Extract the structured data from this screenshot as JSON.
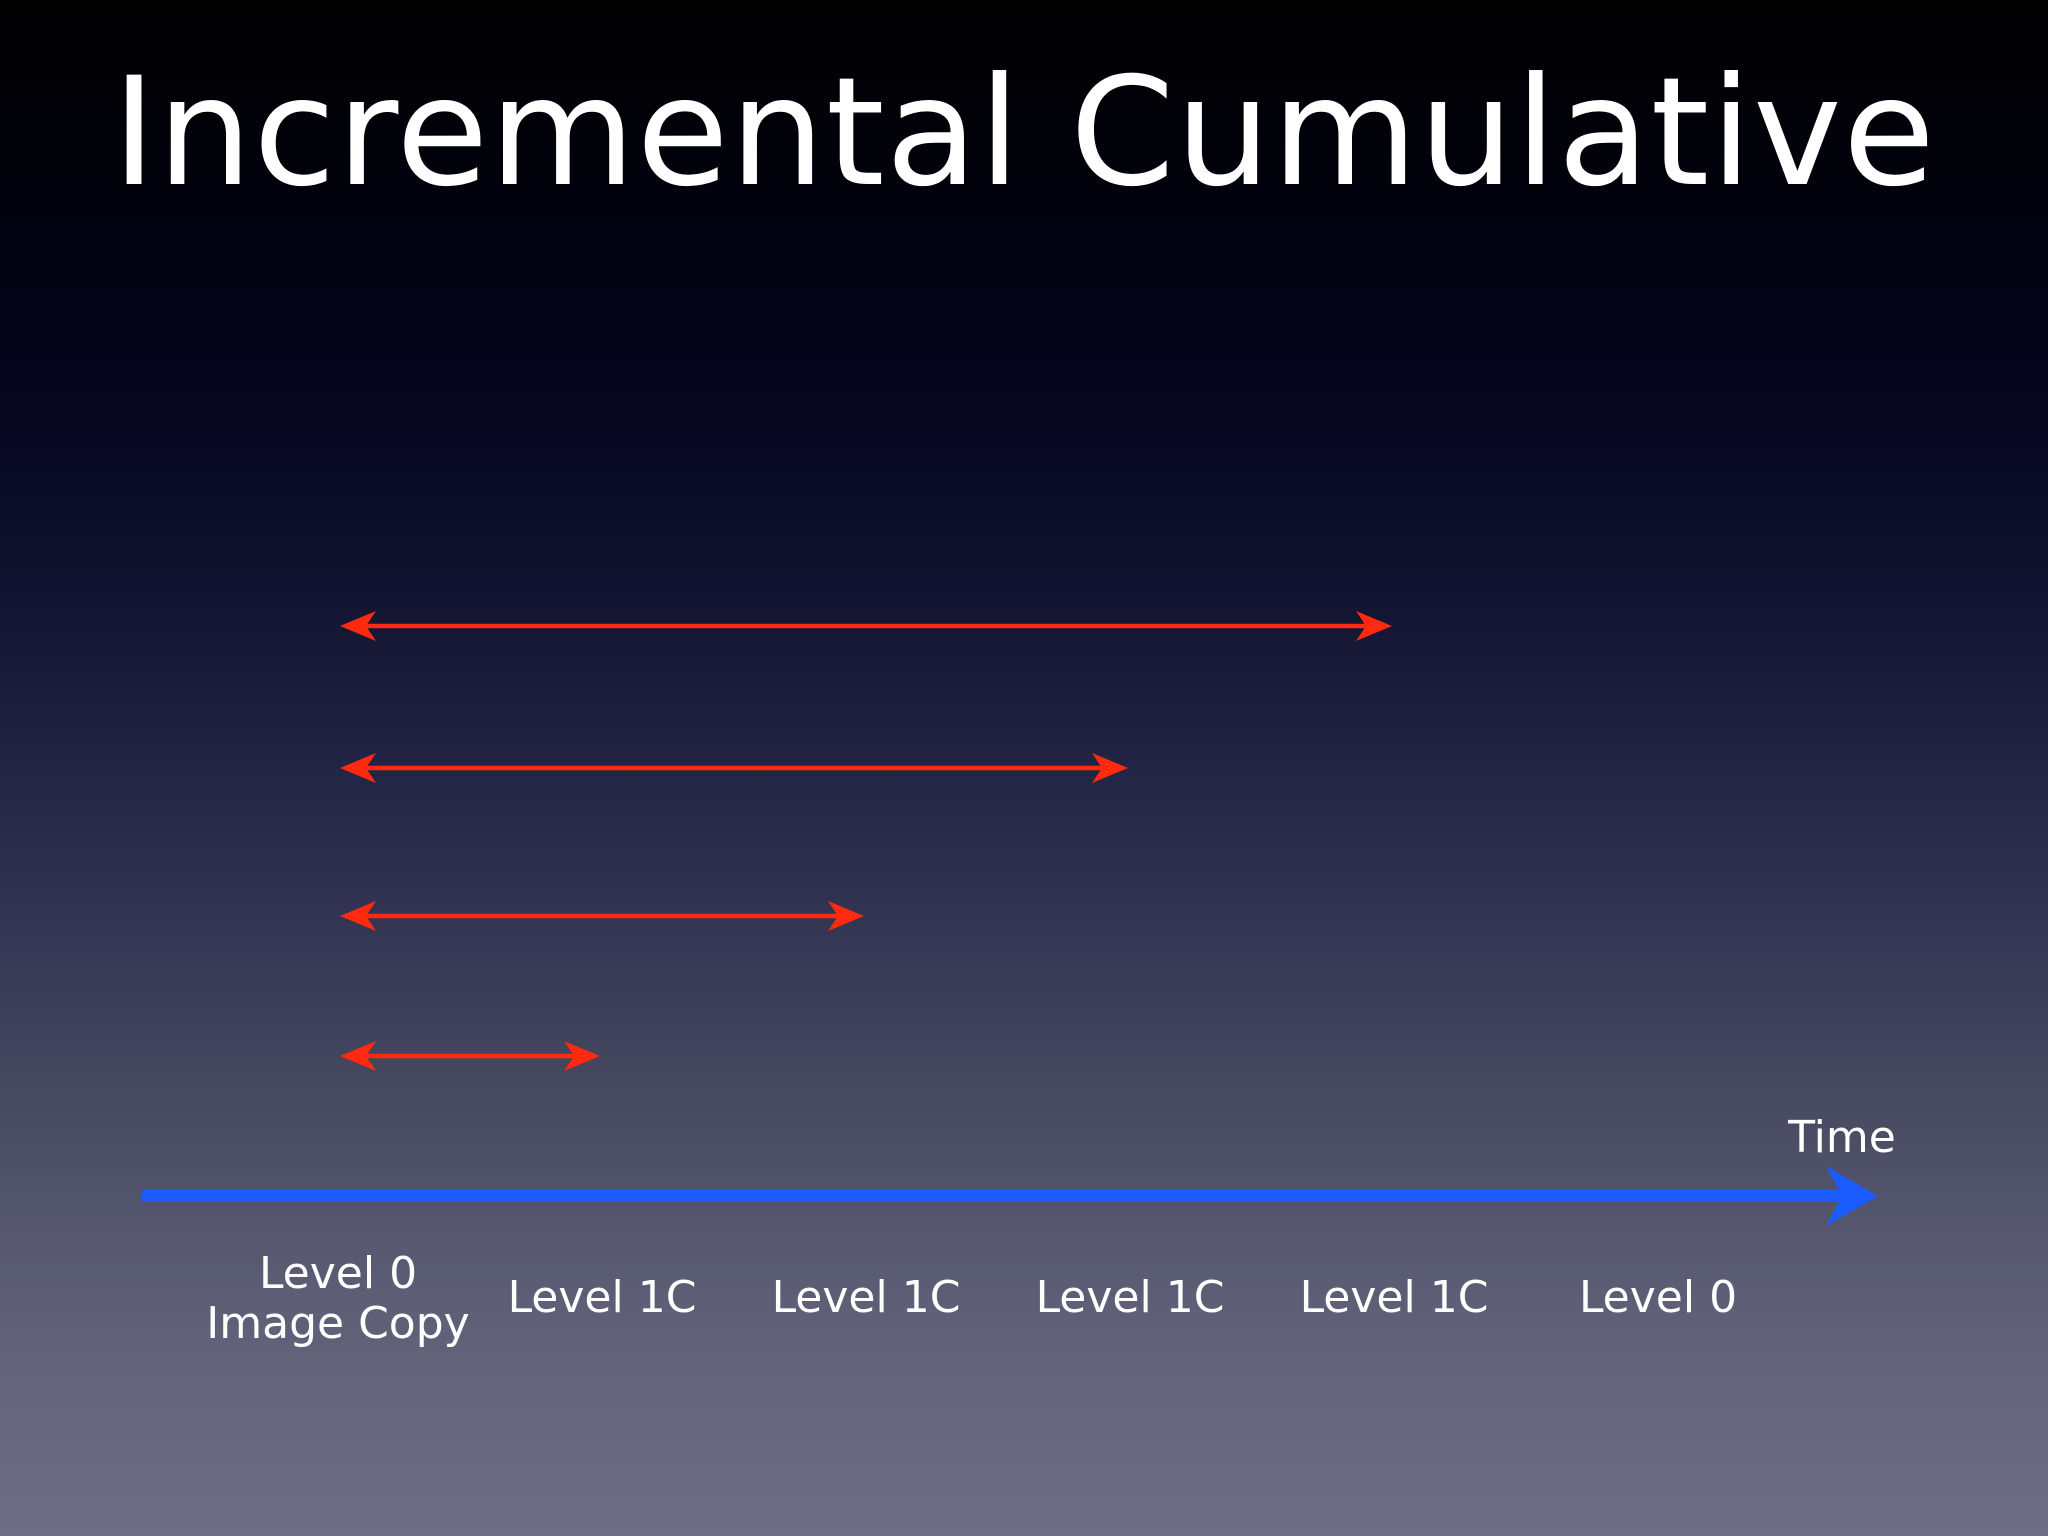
{
  "slide": {
    "title": "Incremental Cumulative"
  },
  "timeline": {
    "axis_label": "Time",
    "axis_color": "#1a5cff",
    "marker_color": "#7aa0f0",
    "arrow_color": "#ff2a10",
    "backups": [
      {
        "label_lines": [
          "Level 0",
          "Image Copy"
        ]
      },
      {
        "label_lines": [
          "Level 1C"
        ]
      },
      {
        "label_lines": [
          "Level 1C"
        ]
      },
      {
        "label_lines": [
          "Level 1C"
        ]
      },
      {
        "label_lines": [
          "Level 1C"
        ]
      },
      {
        "label_lines": [
          "Level 0"
        ]
      }
    ],
    "cumulative_spans": [
      {
        "from": 0,
        "to": 4
      },
      {
        "from": 0,
        "to": 3
      },
      {
        "from": 0,
        "to": 2
      },
      {
        "from": 0,
        "to": 1
      }
    ]
  }
}
